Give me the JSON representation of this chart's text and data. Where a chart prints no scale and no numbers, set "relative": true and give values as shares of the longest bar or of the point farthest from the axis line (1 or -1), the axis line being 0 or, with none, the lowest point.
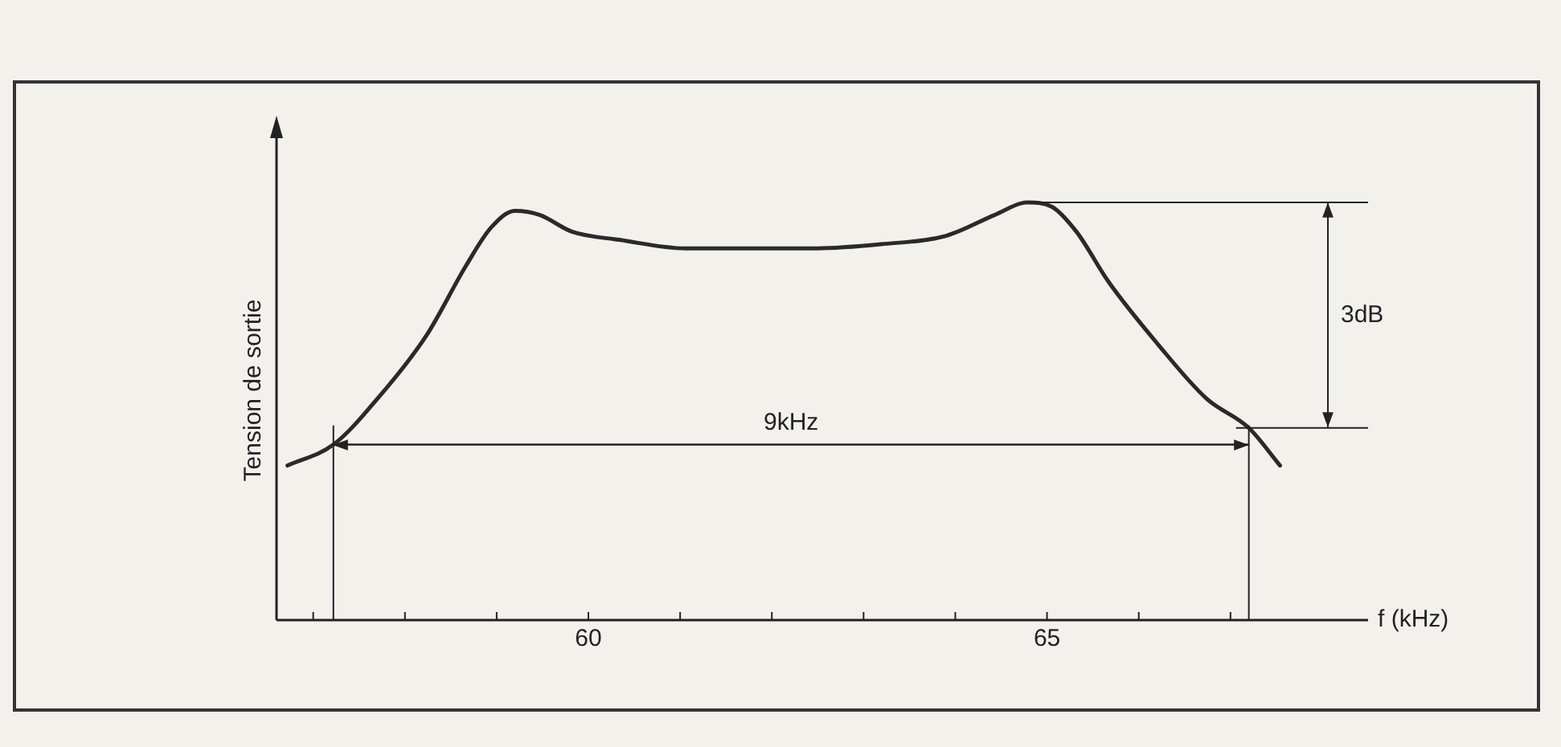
{
  "chart_data": {
    "type": "line",
    "relative": true,
    "ylabel": "Tension de sortie",
    "xlabel": "f (kHz)",
    "xlim": [
      56.6,
      68.5
    ],
    "xticks": [
      {
        "value": 57,
        "label": null
      },
      {
        "value": 58,
        "label": null
      },
      {
        "value": 59,
        "label": null
      },
      60,
      {
        "value": 61,
        "label": null
      },
      {
        "value": 62,
        "label": null
      },
      {
        "value": 63,
        "label": null
      },
      {
        "value": 64,
        "label": null
      },
      65,
      {
        "value": 66,
        "label": null
      },
      {
        "value": 67,
        "label": null
      }
    ],
    "x": [
      56.72,
      57.22,
      57.7,
      58.23,
      58.67,
      58.94,
      59.2,
      59.47,
      59.82,
      60.35,
      61.06,
      61.77,
      62.48,
      63.19,
      63.9,
      64.43,
      64.79,
      65.05,
      65.32,
      65.67,
      66.21,
      66.74,
      67.2,
      67.54
    ],
    "series": [
      {
        "color": "#2a2a2a",
        "values": [
          0.37,
          0.42,
          0.53,
          0.68,
          0.85,
          0.94,
          0.98,
          0.97,
          0.93,
          0.91,
          0.89,
          0.89,
          0.89,
          0.9,
          0.92,
          0.97,
          1,
          0.99,
          0.93,
          0.81,
          0.66,
          0.53,
          0.46,
          0.37
        ]
      }
    ],
    "ref_lines": [
      {
        "axis": "y",
        "value": 1
      },
      {
        "axis": "y",
        "value": 0.46
      },
      {
        "axis": "y",
        "value": 0.42
      },
      {
        "axis": "x",
        "value": 57.22
      },
      {
        "axis": "x",
        "value": 67.2
      }
    ],
    "annotations": [
      "3dB",
      "9kHz"
    ],
    "grid": false,
    "legend": false,
    "marker": "none",
    "line_style": "solid"
  }
}
